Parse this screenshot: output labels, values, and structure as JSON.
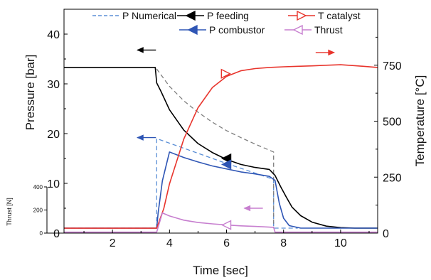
{
  "chart_data": {
    "type": "line",
    "xlabel": "Time [sec]",
    "ylabel_left": "Pressure [bar]",
    "ylabel_right": "Temperature [°C]",
    "ylabel_thrust": "Thrust [N]",
    "xlim": [
      0.3,
      11.3
    ],
    "ylim_left": [
      0,
      45
    ],
    "ylim_right": [
      0,
      1000
    ],
    "ylim_thrust": [
      0,
      400
    ],
    "x_ticks": [
      "2",
      "4",
      "6",
      "8",
      "10"
    ],
    "y_left_ticks": [
      "0",
      "10",
      "20",
      "30",
      "40"
    ],
    "y_right_ticks": [
      "0",
      "250",
      "500",
      "750"
    ],
    "y_thrust_ticks": [
      "0",
      "200",
      "400"
    ],
    "legend_position": "top",
    "series": [
      {
        "name": "P Numerical",
        "axis": "left",
        "color": "#5b8fd6",
        "dash": true,
        "x": [
          0.3,
          3.55,
          3.55,
          6.0,
          7.65,
          7.65,
          8.5
        ],
        "y": [
          1.0,
          1.0,
          19.0,
          14.0,
          10.8,
          1.0,
          1.0
        ]
      },
      {
        "name": "P Numerical",
        "axis": "left",
        "color": "#7f7f7f",
        "dash": true,
        "x": [
          3.55,
          4.0,
          4.5,
          5.0,
          5.5,
          6.0,
          6.5,
          7.0,
          7.65,
          7.65
        ],
        "y": [
          33.0,
          29.5,
          26.6,
          24.3,
          22.3,
          20.6,
          19.2,
          17.9,
          16.3,
          1.0
        ]
      },
      {
        "name": "P feeding",
        "axis": "left",
        "color": "#000000",
        "x": [
          0.3,
          3.5,
          3.55,
          3.7,
          4.0,
          4.5,
          5.0,
          5.5,
          6.0,
          6.5,
          7.0,
          7.5,
          7.7,
          7.9,
          8.1,
          8.3,
          8.6,
          9.0,
          9.5,
          10.0,
          10.5,
          11.3
        ],
        "y": [
          33.3,
          33.3,
          30.2,
          28.5,
          24.8,
          20.7,
          18.0,
          16.2,
          14.8,
          13.8,
          13.2,
          12.8,
          11.6,
          9.3,
          7.2,
          5.2,
          3.5,
          2.2,
          1.4,
          1.1,
          1.0,
          1.0
        ]
      },
      {
        "name": "P combustor",
        "axis": "left",
        "color": "#2f56b5",
        "x": [
          0.3,
          3.55,
          3.6,
          3.75,
          3.9,
          4.0,
          4.5,
          5.0,
          5.5,
          6.0,
          6.5,
          7.0,
          7.5,
          7.7,
          7.85,
          8.0,
          8.2,
          8.6,
          11.3
        ],
        "y": [
          1.0,
          1.0,
          4.0,
          10.5,
          14.0,
          16.3,
          15.2,
          14.3,
          13.5,
          12.9,
          12.3,
          11.9,
          11.4,
          10.6,
          6.0,
          3.0,
          1.5,
          1.0,
          1.0
        ]
      },
      {
        "name": "T catalyst",
        "axis": "right",
        "color": "#e8342c",
        "x": [
          0.3,
          3.55,
          3.8,
          4.0,
          4.5,
          5.0,
          5.5,
          6.0,
          6.5,
          7.0,
          7.5,
          8.0,
          8.5,
          9.0,
          9.5,
          10.0,
          10.5,
          11.3
        ],
        "y": [
          22,
          22,
          110,
          220,
          420,
          560,
          650,
          700,
          725,
          735,
          740,
          743,
          745,
          747,
          750,
          752,
          748,
          740
        ]
      },
      {
        "name": "Thrust",
        "axis": "thrust",
        "color": "#c77fcf",
        "x": [
          0.3,
          3.55,
          3.75,
          4.0,
          4.5,
          5.0,
          5.5,
          6.0,
          6.5,
          7.0,
          7.5,
          7.65,
          7.7,
          8.0,
          11.3
        ],
        "y": [
          8,
          8,
          175,
          148,
          112,
          92,
          80,
          70,
          63,
          58,
          52,
          50,
          8,
          8,
          8
        ]
      }
    ],
    "direction_arrows": [
      {
        "series": "P feeding",
        "x": 3.2,
        "y_left": 36.8,
        "direction": "left",
        "color": "#000000"
      },
      {
        "series": "P combustor",
        "x": 3.2,
        "y_left": 19.2,
        "direction": "left",
        "color": "#2f56b5"
      },
      {
        "series": "Thrust",
        "x": 6.95,
        "y_left": 5.0,
        "direction": "left",
        "color": "#c77fcf"
      },
      {
        "series": "T catalyst",
        "x": 9.45,
        "y_left": 36.3,
        "direction": "right",
        "color": "#e8342c"
      }
    ],
    "legend": [
      {
        "label": "P Numerical",
        "color": "#5b8fd6",
        "marker": "dash"
      },
      {
        "label": "P feeding",
        "color": "#000000",
        "marker": "tri-left-filled"
      },
      {
        "label": "T catalyst",
        "color": "#e8342c",
        "marker": "tri-right-open"
      },
      {
        "label": "P combustor",
        "color": "#2f56b5",
        "marker": "tri-left-filled"
      },
      {
        "label": "Thrust",
        "color": "#c77fcf",
        "marker": "tri-left-open"
      }
    ]
  }
}
